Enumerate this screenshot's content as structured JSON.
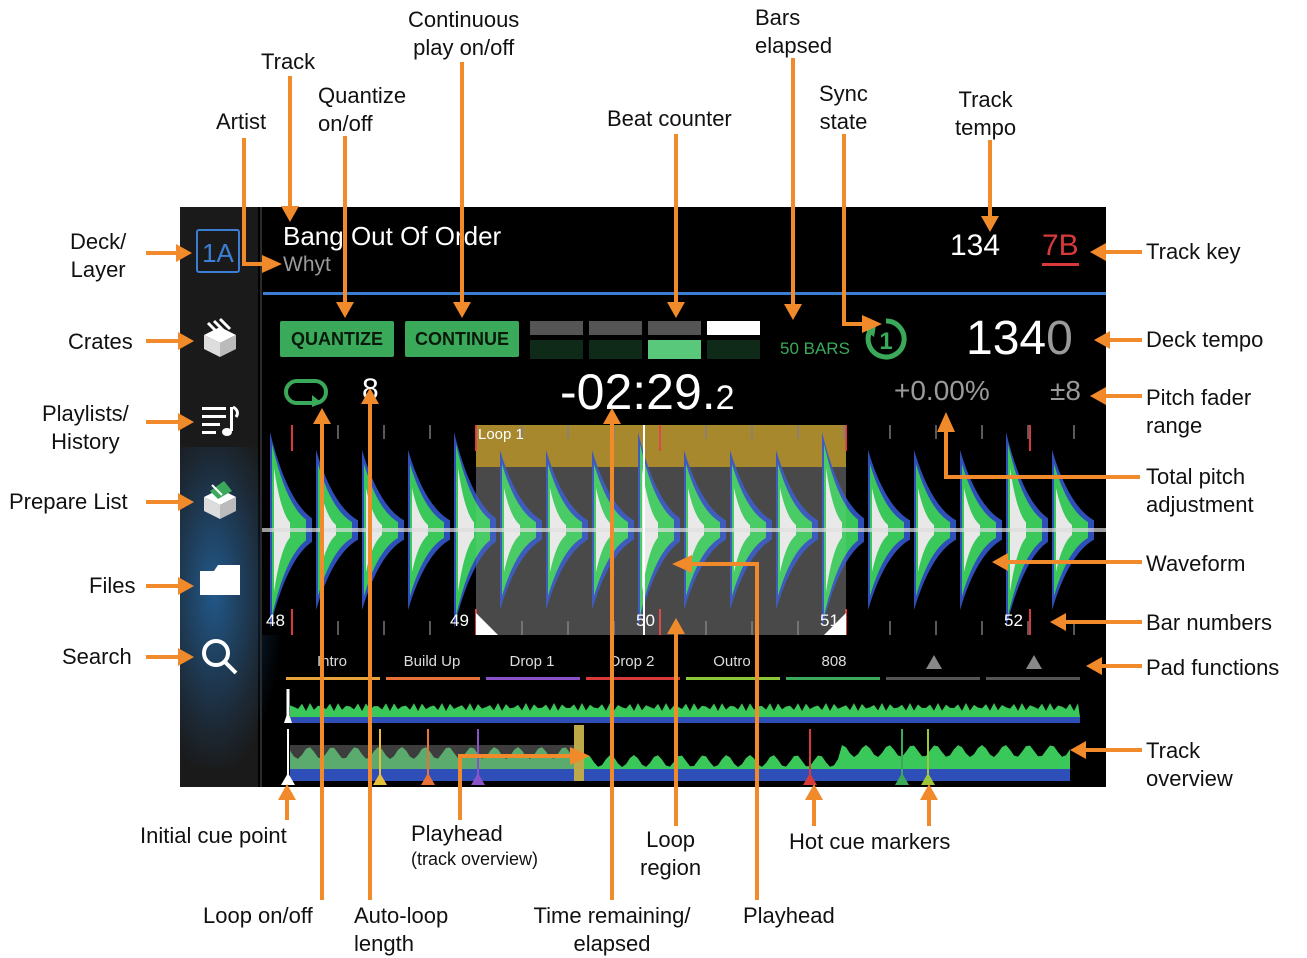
{
  "screen": {
    "deck_layer": "1A",
    "track_title": "Bang Out Of Order",
    "artist": "Whyt",
    "track_tempo": "134",
    "track_key": "7B",
    "quantize_label": "QUANTIZE",
    "continue_label": "CONTINUE",
    "bars_elapsed": "50 BARS",
    "deck_tempo_main": "134",
    "deck_tempo_decimal": "0",
    "auto_loop_length": "8",
    "time_main": "-02:29.",
    "time_decimal": "2",
    "pitch_adjust": "+0.00%",
    "pitch_range": "±8",
    "loop_label": "Loop 1",
    "bar_numbers": [
      "48",
      "49",
      "50",
      "51",
      "52"
    ],
    "pads": [
      {
        "label": "Intro",
        "color": "#e8a33a"
      },
      {
        "label": "Build Up",
        "color": "#e8713a"
      },
      {
        "label": "Drop 1",
        "color": "#8a52c8"
      },
      {
        "label": "Drop 2",
        "color": "#d83a3a"
      },
      {
        "label": "Outro",
        "color": "#8ac83a"
      },
      {
        "label": "808",
        "color": "#3aaa5a"
      },
      {
        "label": "",
        "color": "#555555"
      },
      {
        "label": "",
        "color": "#555555"
      }
    ],
    "colors": {
      "accent_blue": "#3a7fd5",
      "accent_green": "#3aaa5a",
      "key_red": "#d83a3a",
      "arrow_orange": "#f08a2a"
    }
  },
  "callouts": {
    "deck_layer": "Deck/\nLayer",
    "crates": "Crates",
    "playlists_history": "Playlists/\nHistory",
    "prepare_list": "Prepare List",
    "files": "Files",
    "search": "Search",
    "artist": "Artist",
    "track": "Track",
    "quantize": "Quantize\non/off",
    "continuous_play": "Continuous\nplay on/off",
    "beat_counter": "Beat counter",
    "bars_elapsed": "Bars\nelapsed",
    "sync_state": "Sync\nstate",
    "track_tempo": "Track\ntempo",
    "track_key": "Track key",
    "deck_tempo": "Deck tempo",
    "pitch_fader_range": "Pitch fader\nrange",
    "total_pitch_adjustment": "Total pitch\nadjustment",
    "waveform": "Waveform",
    "bar_numbers": "Bar numbers",
    "pad_functions": "Pad functions",
    "track_overview": "Track\noverview",
    "initial_cue_point": "Initial cue point",
    "playhead_overview": "Playhead",
    "playhead_overview_sub": "(track overview)",
    "loop_region": "Loop\nregion",
    "hot_cue_markers": "Hot cue markers",
    "loop_on_off": "Loop on/off",
    "auto_loop_length": "Auto-loop\nlength",
    "time_remaining": "Time remaining/\nelapsed",
    "playhead": "Playhead"
  }
}
